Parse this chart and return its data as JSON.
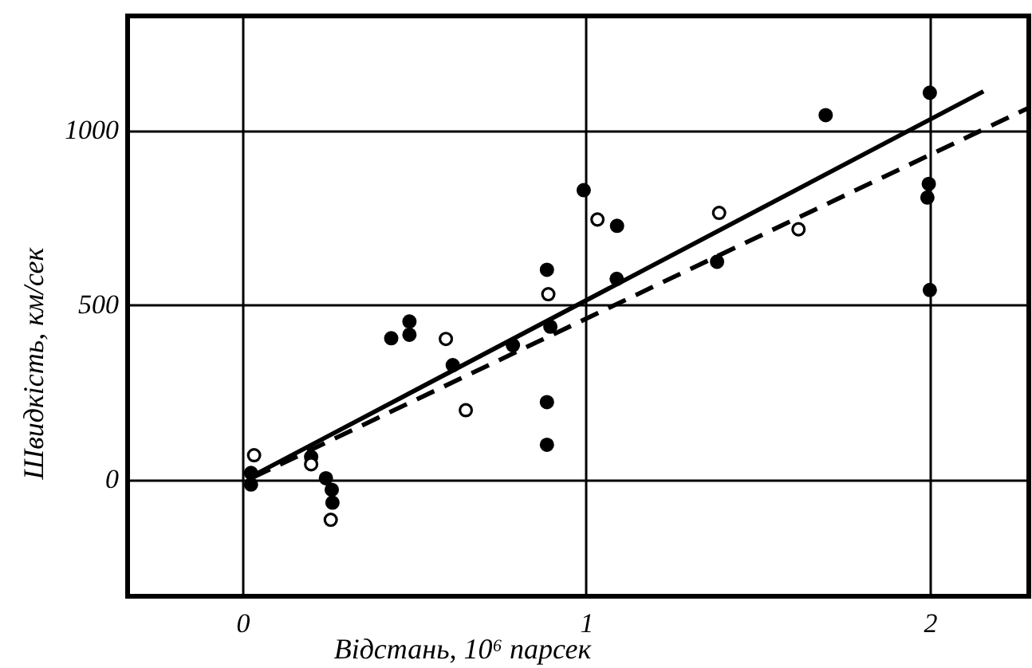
{
  "chart_data": {
    "type": "scatter",
    "xlabel": "Відстань, 10⁶ парсек",
    "ylabel": "Швидкість, км/сек",
    "xlim": [
      -0.334,
      2.288
    ],
    "ylim": [
      -335,
      1327
    ],
    "xticks": [
      0,
      1,
      2
    ],
    "yticks": [
      0,
      500,
      1000
    ],
    "grid": true,
    "series": [
      {
        "marker": "circle",
        "color": "#000000",
        "x": [
          0.025,
          0.025,
          0.2,
          0.243,
          0.26,
          0.262,
          0.433,
          0.486,
          0.486,
          0.612,
          0.787,
          0.886,
          0.896,
          0.886,
          0.886,
          1.089,
          0.993,
          1.09,
          1.697,
          1.381,
          2.0,
          1.997,
          1.993,
          2.0
        ],
        "values": [
          -15,
          18,
          64,
          3,
          -30,
          -67,
          404,
          452,
          414,
          327,
          384,
          600,
          437,
          221,
          99,
          574,
          828,
          726,
          1043,
          623,
          1107,
          846,
          807,
          542
        ]
      },
      {
        "marker": "circle",
        "color": "#ffffff",
        "x": [
          0.034,
          0.2,
          0.257,
          0.592,
          0.65,
          0.89,
          1.033,
          1.387,
          1.618
        ],
        "values": [
          69,
          43,
          -116,
          402,
          198,
          530,
          744,
          763,
          716
        ]
      },
      {
        "type": "line",
        "marker": "none",
        "line_style": "solid",
        "color": "#000000",
        "x": [
          0.03,
          2.156
        ],
        "values": [
          10,
          1111
        ]
      },
      {
        "type": "line",
        "marker": "none",
        "line_style": "dashed",
        "color": "#000000",
        "x": [
          0.03,
          2.288
        ],
        "values": [
          5,
          1064
        ]
      }
    ]
  }
}
